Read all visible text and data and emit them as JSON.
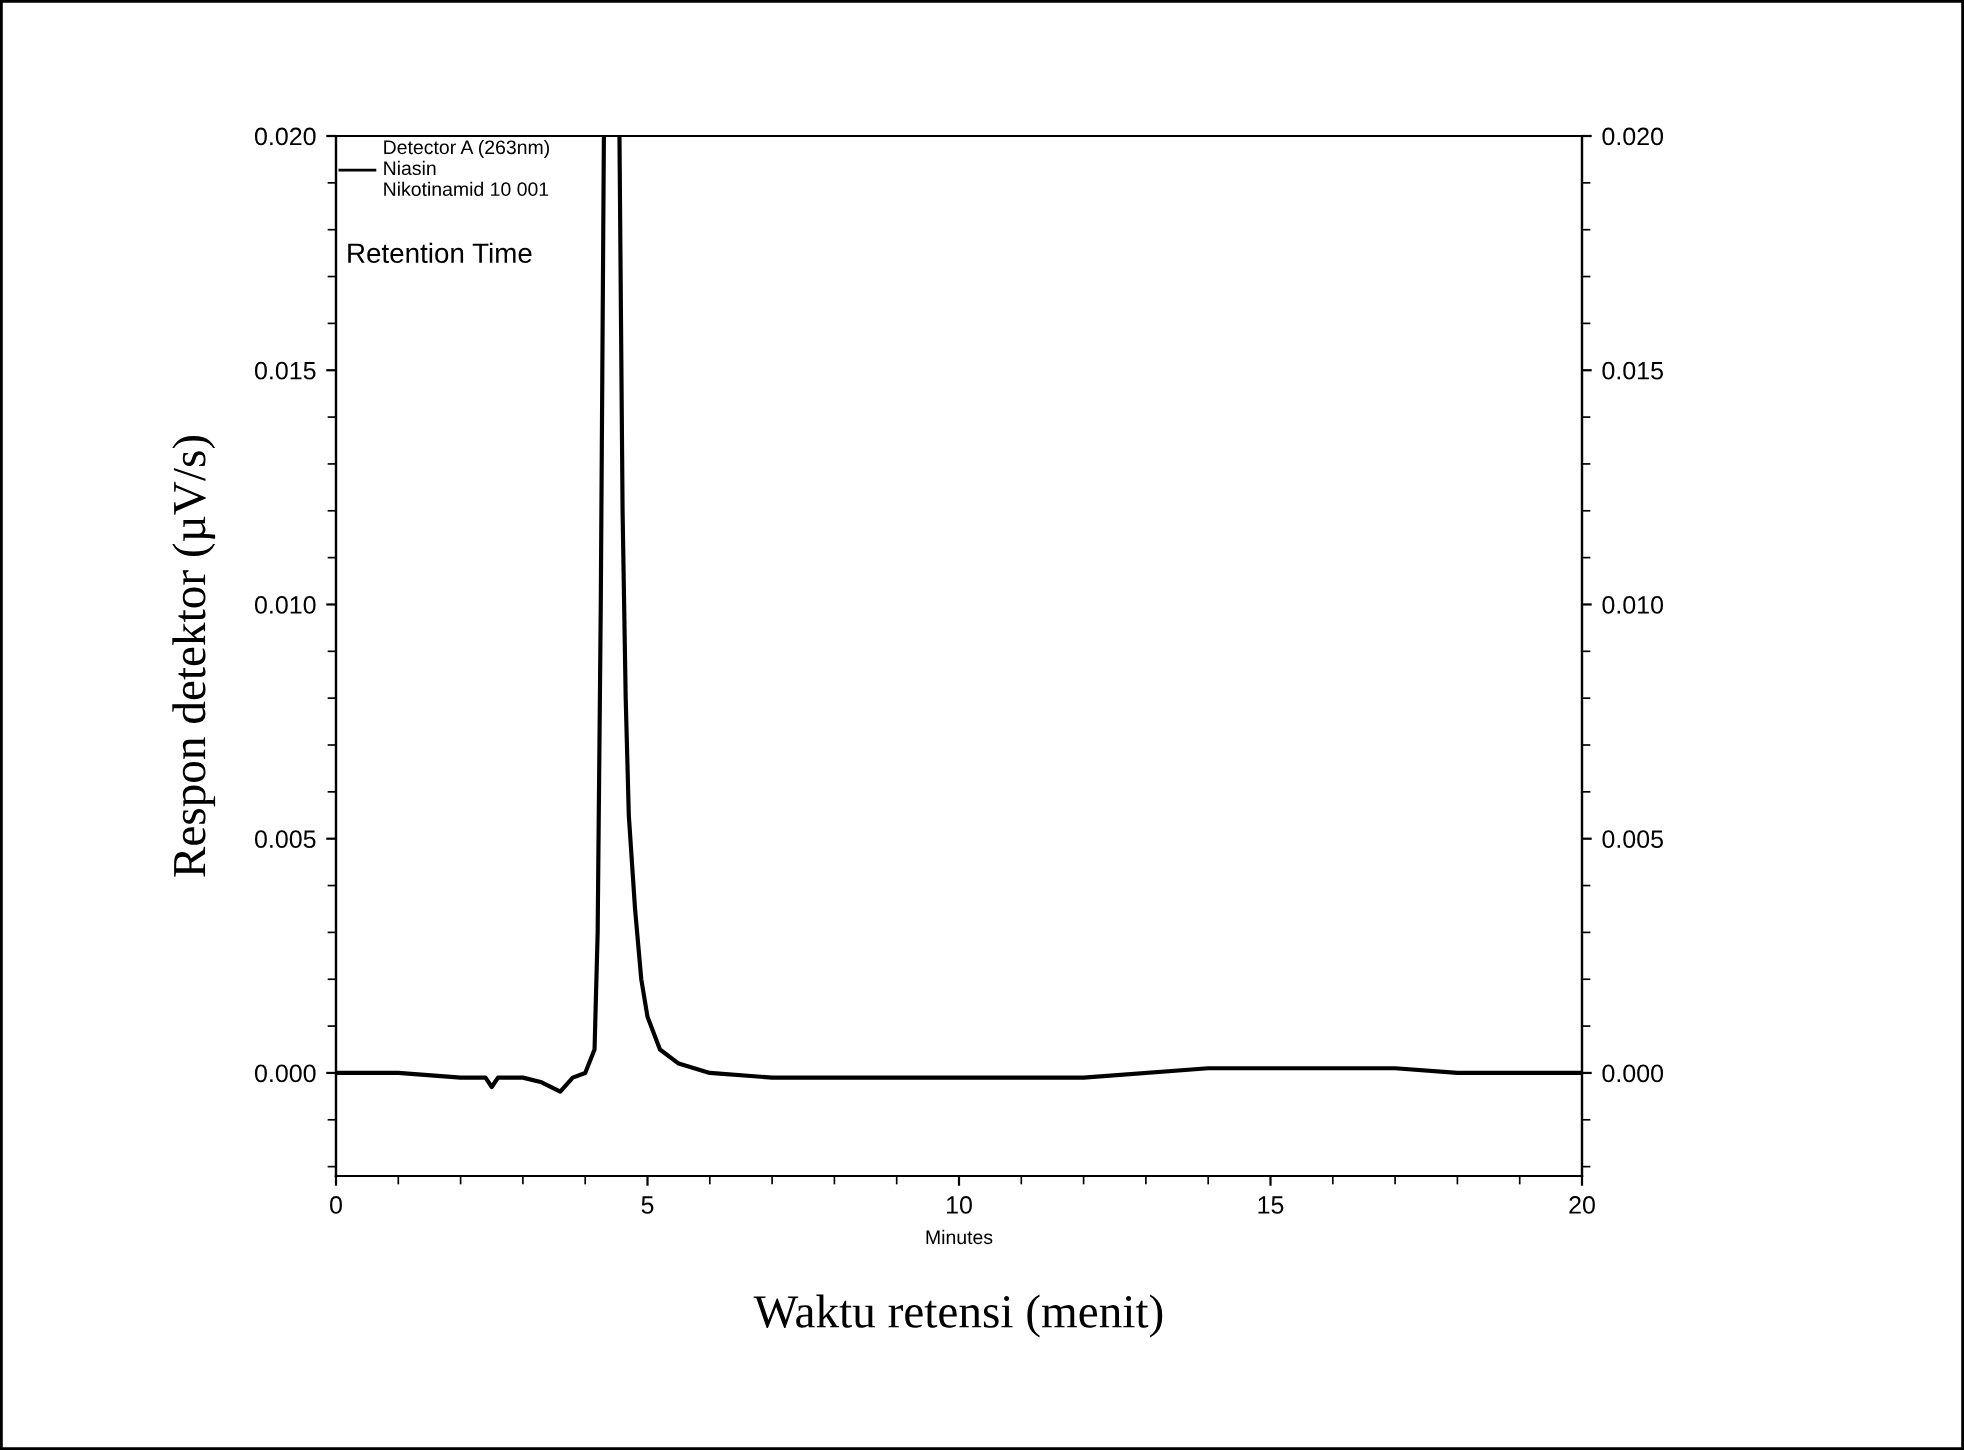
{
  "chart_data": {
    "type": "line",
    "xlabel": "Minutes",
    "ylabel": "Respon detektor (µV/s)",
    "annotations": [
      "Retention Time",
      "Waktu retensi (menit)"
    ],
    "series": [
      {
        "name": "Detector A (263nm)\nNiasin\nNikotinamid 10 001",
        "color": "#000000",
        "x": [
          0,
          1,
          2,
          2.4,
          2.5,
          2.6,
          3.0,
          3.3,
          3.6,
          3.8,
          4.0,
          4.15,
          4.2,
          4.25,
          4.3,
          4.4,
          4.55,
          4.6,
          4.65,
          4.7,
          4.8,
          4.9,
          5.0,
          5.2,
          5.5,
          6,
          7,
          10,
          12,
          14,
          15,
          17,
          18,
          20
        ],
        "values": [
          0,
          0,
          -0.0001,
          -0.0001,
          -0.0003,
          -0.0001,
          -0.0001,
          -0.0002,
          -0.0004,
          -0.0001,
          0,
          0.0005,
          0.003,
          0.01,
          0.02,
          null,
          0.02,
          0.012,
          0.008,
          0.0055,
          0.0035,
          0.002,
          0.0012,
          0.0005,
          0.0002,
          0,
          -0.0001,
          -0.0001,
          -0.0001,
          0.0001,
          0.0001,
          0.0001,
          0,
          0
        ]
      }
    ],
    "xlim": [
      0,
      20
    ],
    "xticks": [
      0,
      5,
      10,
      15,
      20
    ],
    "ylim": [
      -0.0022,
      0.02
    ],
    "yticks": [
      {
        "value": 0,
        "label": "0.000"
      },
      {
        "value": 0.005,
        "label": "0.005"
      },
      {
        "value": 0.01,
        "label": "0.010"
      },
      {
        "value": 0.015,
        "label": "0.015"
      },
      {
        "value": 0.02,
        "label": "0.020"
      }
    ],
    "y2lim": [
      -0.0022,
      0.02
    ],
    "y2ticks": [
      {
        "value": 0,
        "label": "0.000"
      },
      {
        "value": 0.005,
        "label": "0.005"
      },
      {
        "value": 0.01,
        "label": "0.010"
      },
      {
        "value": 0.015,
        "label": "0.015"
      },
      {
        "value": 0.02,
        "label": "0.020"
      }
    ],
    "legend": "top left",
    "grid": false,
    "line_style": "solid",
    "marker": "none"
  }
}
